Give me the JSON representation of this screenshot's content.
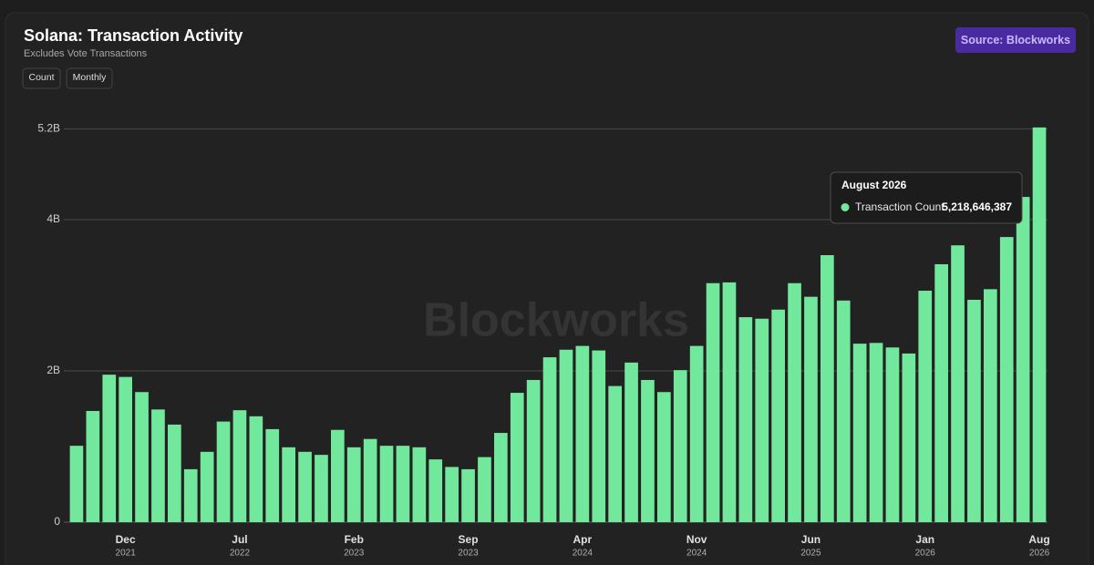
{
  "header": {
    "title": "Solana: Transaction Activity",
    "subtitle": "Excludes Vote Transactions",
    "buttons": [
      "Count",
      "Monthly"
    ],
    "source": "Source: Blockworks"
  },
  "watermark": "Blockworks",
  "chart_data": {
    "type": "bar",
    "categories": [
      null,
      null,
      null,
      {
        "month": "Dec",
        "year": "2021"
      },
      null,
      null,
      null,
      null,
      null,
      null,
      {
        "month": "Jul",
        "year": "2022"
      },
      null,
      null,
      null,
      null,
      null,
      null,
      {
        "month": "Feb",
        "year": "2023"
      },
      null,
      null,
      null,
      null,
      null,
      null,
      {
        "month": "Sep",
        "year": "2023"
      },
      null,
      null,
      null,
      null,
      null,
      null,
      {
        "month": "Apr",
        "year": "2024"
      },
      null,
      null,
      null,
      null,
      null,
      null,
      {
        "month": "Nov",
        "year": "2024"
      },
      null,
      null,
      null,
      null,
      null,
      null,
      {
        "month": "Jun",
        "year": "2025"
      },
      null,
      null,
      null,
      null,
      null,
      null,
      {
        "month": "Jan",
        "year": "2026"
      },
      null,
      null,
      null,
      null,
      null,
      null,
      {
        "month": "Aug",
        "year": "2026"
      }
    ],
    "series": [
      {
        "name": "Transaction Count",
        "color": "#72e89c",
        "values": [
          1010000000,
          1470000000,
          1950000000,
          1920000000,
          1720000000,
          1490000000,
          1290000000,
          700000000,
          930000000,
          1330000000,
          1480000000,
          1400000000,
          1230000000,
          990000000,
          930000000,
          890000000,
          1220000000,
          990000000,
          1100000000,
          1010000000,
          1010000000,
          990000000,
          830000000,
          730000000,
          700000000,
          860000000,
          1180000000,
          1710000000,
          1880000000,
          2180000000,
          2280000000,
          2330000000,
          2270000000,
          1800000000,
          2110000000,
          1880000000,
          1720000000,
          2010000000,
          2330000000,
          3160000000,
          3170000000,
          2710000000,
          2690000000,
          2810000000,
          3160000000,
          2980000000,
          3530000000,
          2930000000,
          2360000000,
          2370000000,
          2310000000,
          2230000000,
          3060000000,
          3410000000,
          3660000000,
          2940000000,
          3080000000,
          3770000000,
          4300000000,
          5218646387
        ]
      }
    ],
    "ylim": [
      0,
      5220000000
    ],
    "yticks": [
      0,
      {
        "value": 2000000000,
        "label": "2B"
      },
      {
        "value": 4000000000,
        "label": "4B"
      },
      {
        "value": 5200000000,
        "label": "5.2B"
      }
    ],
    "grid": true,
    "tooltip": {
      "title": "August 2026",
      "value_label": "5,218,646,387"
    }
  }
}
